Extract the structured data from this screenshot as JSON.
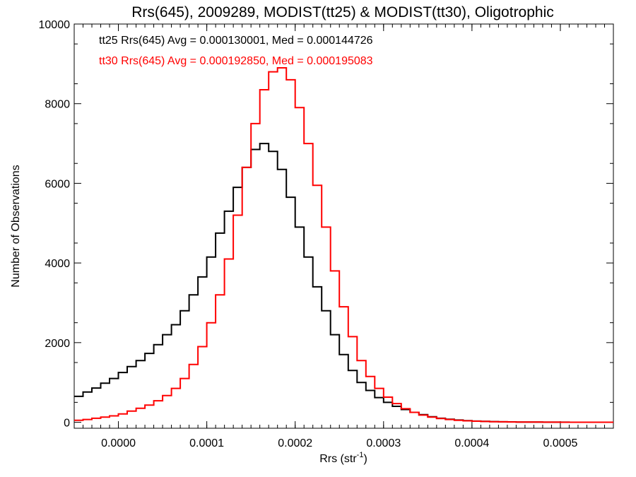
{
  "chart_data": {
    "type": "line",
    "step": true,
    "title": "Rrs(645), 2009289, MODIST(tt25) & MODIST(tt30), Oligotrophic",
    "xlabel_base": "Rrs (str",
    "xlabel_sup": "-1",
    "xlabel_close": ")",
    "ylabel": "Number of Observations",
    "xlim": [
      -5e-05,
      0.00056
    ],
    "ylim": [
      -150,
      10000
    ],
    "x_ticks": [
      0.0,
      0.0001,
      0.0002,
      0.0003,
      0.0004,
      0.0005
    ],
    "x_tick_labels": [
      "0.0000",
      "0.0001",
      "0.0002",
      "0.0003",
      "0.0004",
      "0.0005"
    ],
    "y_ticks": [
      0,
      2000,
      4000,
      6000,
      8000,
      10000
    ],
    "y_tick_labels": [
      "0",
      "2000",
      "4000",
      "6000",
      "8000",
      "10000"
    ],
    "grid": false,
    "annotations": [
      {
        "text": "tt25 Rrs(645) Avg = 0.000130001, Med = 0.000144726",
        "color": "#000000"
      },
      {
        "text": "tt30 Rrs(645) Avg = 0.000192850, Med = 0.000195083",
        "color": "#ff0000"
      }
    ],
    "series": [
      {
        "color": "#000000",
        "x": [
          -5e-05,
          -4e-05,
          -3e-05,
          -2e-05,
          -1e-05,
          0.0,
          1e-05,
          2e-05,
          3e-05,
          4e-05,
          5e-05,
          6e-05,
          7e-05,
          8e-05,
          9e-05,
          0.0001,
          0.00011,
          0.00012,
          0.00013,
          0.00014,
          0.00015,
          0.00016,
          0.00017,
          0.00018,
          0.00019,
          0.0002,
          0.00021,
          0.00022,
          0.00023,
          0.00024,
          0.00025,
          0.00026,
          0.00027,
          0.00028,
          0.00029,
          0.0003,
          0.00031,
          0.00032,
          0.00033,
          0.00034,
          0.00035,
          0.00036,
          0.00037,
          0.00038,
          0.00039,
          0.0004,
          0.00041,
          0.00042,
          0.00043,
          0.00044,
          0.00045,
          0.00046,
          0.00047,
          0.00048,
          0.00049,
          0.0005,
          0.00051,
          0.00052,
          0.00053,
          0.00054,
          0.00055,
          0.00056
        ],
        "values": [
          650,
          760,
          860,
          980,
          1100,
          1250,
          1400,
          1550,
          1730,
          1950,
          2200,
          2450,
          2800,
          3200,
          3650,
          4150,
          4750,
          5300,
          5900,
          6400,
          6850,
          7000,
          6800,
          6350,
          5650,
          4900,
          4150,
          3400,
          2800,
          2200,
          1700,
          1300,
          1000,
          800,
          620,
          500,
          400,
          320,
          250,
          190,
          140,
          100,
          75,
          55,
          40,
          30,
          22,
          16,
          12,
          9,
          7,
          5,
          4,
          3,
          2,
          2,
          1,
          1,
          1,
          0,
          0,
          0
        ]
      },
      {
        "color": "#ff0000",
        "x": [
          -5e-05,
          -4e-05,
          -3e-05,
          -2e-05,
          -1e-05,
          0.0,
          1e-05,
          2e-05,
          3e-05,
          4e-05,
          5e-05,
          6e-05,
          7e-05,
          8e-05,
          9e-05,
          0.0001,
          0.00011,
          0.00012,
          0.00013,
          0.00014,
          0.00015,
          0.00016,
          0.00017,
          0.00018,
          0.00019,
          0.0002,
          0.00021,
          0.00022,
          0.00023,
          0.00024,
          0.00025,
          0.00026,
          0.00027,
          0.00028,
          0.00029,
          0.0003,
          0.00031,
          0.00032,
          0.00033,
          0.00034,
          0.00035,
          0.00036,
          0.00037,
          0.00038,
          0.00039,
          0.0004,
          0.00041,
          0.00042,
          0.00043,
          0.00044,
          0.00045,
          0.00046,
          0.00047,
          0.00048,
          0.00049,
          0.0005,
          0.00051,
          0.00052,
          0.00053,
          0.00054,
          0.00055,
          0.00056
        ],
        "values": [
          50,
          70,
          100,
          130,
          160,
          210,
          280,
          350,
          430,
          540,
          670,
          850,
          1100,
          1450,
          1900,
          2500,
          3200,
          4100,
          5200,
          6400,
          7500,
          8350,
          8800,
          8900,
          8600,
          7900,
          7000,
          5950,
          4900,
          3800,
          2900,
          2150,
          1550,
          1150,
          850,
          630,
          470,
          340,
          250,
          180,
          130,
          95,
          70,
          50,
          37,
          27,
          20,
          15,
          11,
          8,
          6,
          5,
          4,
          3,
          2,
          1,
          1,
          0,
          0,
          0,
          0,
          0
        ]
      }
    ]
  }
}
